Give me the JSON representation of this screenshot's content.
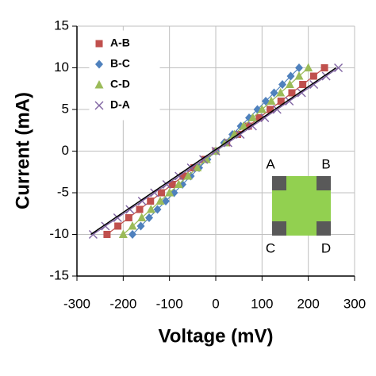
{
  "chart_data": {
    "type": "line",
    "xlabel": "Voltage (mV)",
    "ylabel": "Current (mA)",
    "xlim": [
      -300,
      300
    ],
    "xticks": [
      -300,
      -200,
      -100,
      0,
      100,
      200,
      300
    ],
    "ylim": [
      -15,
      15
    ],
    "yticks": [
      -15,
      -10,
      -5,
      0,
      5,
      10,
      15
    ],
    "grid": true,
    "legend": "top-left",
    "series": [
      {
        "name": "A-B",
        "color": "#c0504d",
        "marker": "square",
        "x": [
          -235,
          -211.5,
          -188,
          -164.5,
          -141,
          -117.5,
          -94,
          -70.5,
          -47,
          -23.5,
          0,
          23.5,
          47,
          70.5,
          94,
          117.5,
          141,
          164.5,
          188,
          211.5,
          235
        ],
        "values": [
          -10,
          -9,
          -8,
          -7,
          -6,
          -5,
          -4,
          -3,
          -2,
          -1,
          0,
          1,
          2,
          3,
          4,
          5,
          6,
          7,
          8,
          9,
          10
        ]
      },
      {
        "name": "B-C",
        "color": "#4f81bd",
        "marker": "diamond",
        "x": [
          -180,
          -162,
          -144,
          -126,
          -108,
          -90,
          -72,
          -54,
          -36,
          -18,
          0,
          18,
          36,
          54,
          72,
          90,
          108,
          126,
          144,
          162,
          180
        ],
        "values": [
          -10,
          -9,
          -8,
          -7,
          -6,
          -5,
          -4,
          -3,
          -2,
          -1,
          0,
          1,
          2,
          3,
          4,
          5,
          6,
          7,
          8,
          9,
          10
        ]
      },
      {
        "name": "C-D",
        "color": "#9bbb59",
        "marker": "triangle",
        "x": [
          -200,
          -180,
          -160,
          -140,
          -120,
          -100,
          -80,
          -60,
          -40,
          -20,
          0,
          20,
          40,
          60,
          80,
          100,
          120,
          140,
          160,
          180,
          200
        ],
        "values": [
          -10,
          -9,
          -8,
          -7,
          -6,
          -5,
          -4,
          -3,
          -2,
          -1,
          0,
          1,
          2,
          3,
          4,
          5,
          6,
          7,
          8,
          9,
          10
        ]
      },
      {
        "name": "D-A",
        "color": "#8064a2",
        "marker": "x",
        "x": [
          -265,
          -238.5,
          -212,
          -185.5,
          -159,
          -132.5,
          -106,
          -79.5,
          -53,
          -26.5,
          0,
          26.5,
          53,
          79.5,
          106,
          132.5,
          159,
          185.5,
          212,
          238.5,
          265
        ],
        "values": [
          -10,
          -9,
          -8,
          -7,
          -6,
          -5,
          -4,
          -3,
          -2,
          -1,
          0,
          1,
          2,
          3,
          4,
          5,
          6,
          7,
          8,
          9,
          10
        ]
      },
      {
        "color": "#000000",
        "marker": "none",
        "x": [
          -270,
          260
        ],
        "values": [
          -10,
          10
        ]
      }
    ],
    "inset_labels": [
      "A",
      "B",
      "C",
      "D"
    ]
  }
}
